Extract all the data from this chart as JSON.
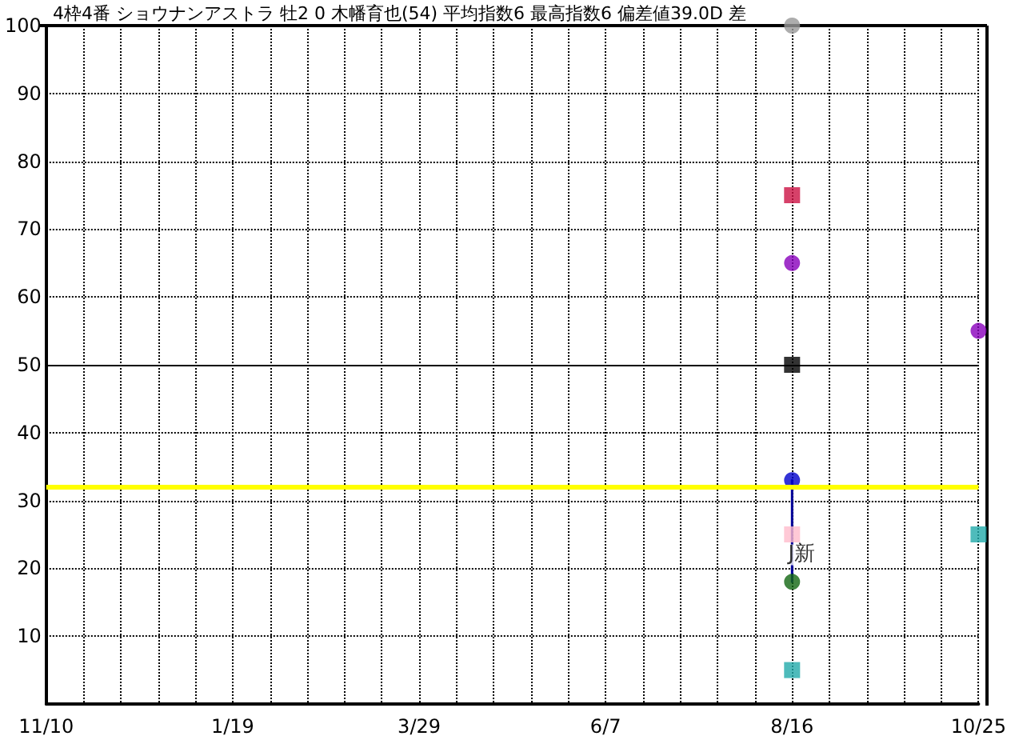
{
  "chart_data": {
    "type": "scatter",
    "title": "4枠4番 ショウナンアストラ 牡2 0 木幡育也(54) 平均指数6 最高指数6 偏差値39.0D 差",
    "categories": [
      "11/10",
      null,
      null,
      null,
      null,
      "1/19",
      null,
      null,
      null,
      null,
      "3/29",
      null,
      null,
      null,
      null,
      "6/7",
      null,
      null,
      null,
      null,
      "8/16",
      null,
      null,
      null,
      null,
      "10/25"
    ],
    "ylim": [
      0,
      100
    ],
    "yticks": [
      10,
      20,
      30,
      40,
      50,
      60,
      70,
      80,
      90,
      100
    ],
    "grid": true,
    "ref_lines": [
      {
        "axis": "y",
        "value": 32,
        "color": "#ffff00"
      },
      {
        "axis": "y",
        "value": 50,
        "color": "#000000"
      }
    ],
    "series": [
      {
        "type": "line",
        "marker": "none",
        "color": "#000099",
        "x": [
          "8/16",
          "8/16"
        ],
        "values": [
          33,
          18
        ]
      },
      {
        "marker": "circle",
        "color": "#999999",
        "x": [
          "8/16"
        ],
        "values": [
          100
        ]
      },
      {
        "marker": "square",
        "color": "#cc1144",
        "x": [
          "8/16"
        ],
        "values": [
          75
        ]
      },
      {
        "marker": "circle",
        "color": "#8800bb",
        "x": [
          "8/16",
          "10/25"
        ],
        "values": [
          65,
          55
        ]
      },
      {
        "marker": "square",
        "color": "#000000",
        "x": [
          "8/16"
        ],
        "values": [
          50
        ]
      },
      {
        "marker": "circle",
        "color": "#0000cc",
        "x": [
          "8/16"
        ],
        "values": [
          33
        ]
      },
      {
        "marker": "square",
        "color": "#ffbbcc",
        "x": [
          "8/16"
        ],
        "values": [
          25
        ]
      },
      {
        "marker": "circle",
        "color": "#116611",
        "x": [
          "8/16"
        ],
        "values": [
          18
        ]
      },
      {
        "marker": "square",
        "color": "#22aaaa",
        "x": [
          "8/16",
          "10/25"
        ],
        "values": [
          5,
          25
        ]
      }
    ],
    "annotations": [
      {
        "text": "J新",
        "x": "8/16",
        "y": 22
      }
    ]
  }
}
